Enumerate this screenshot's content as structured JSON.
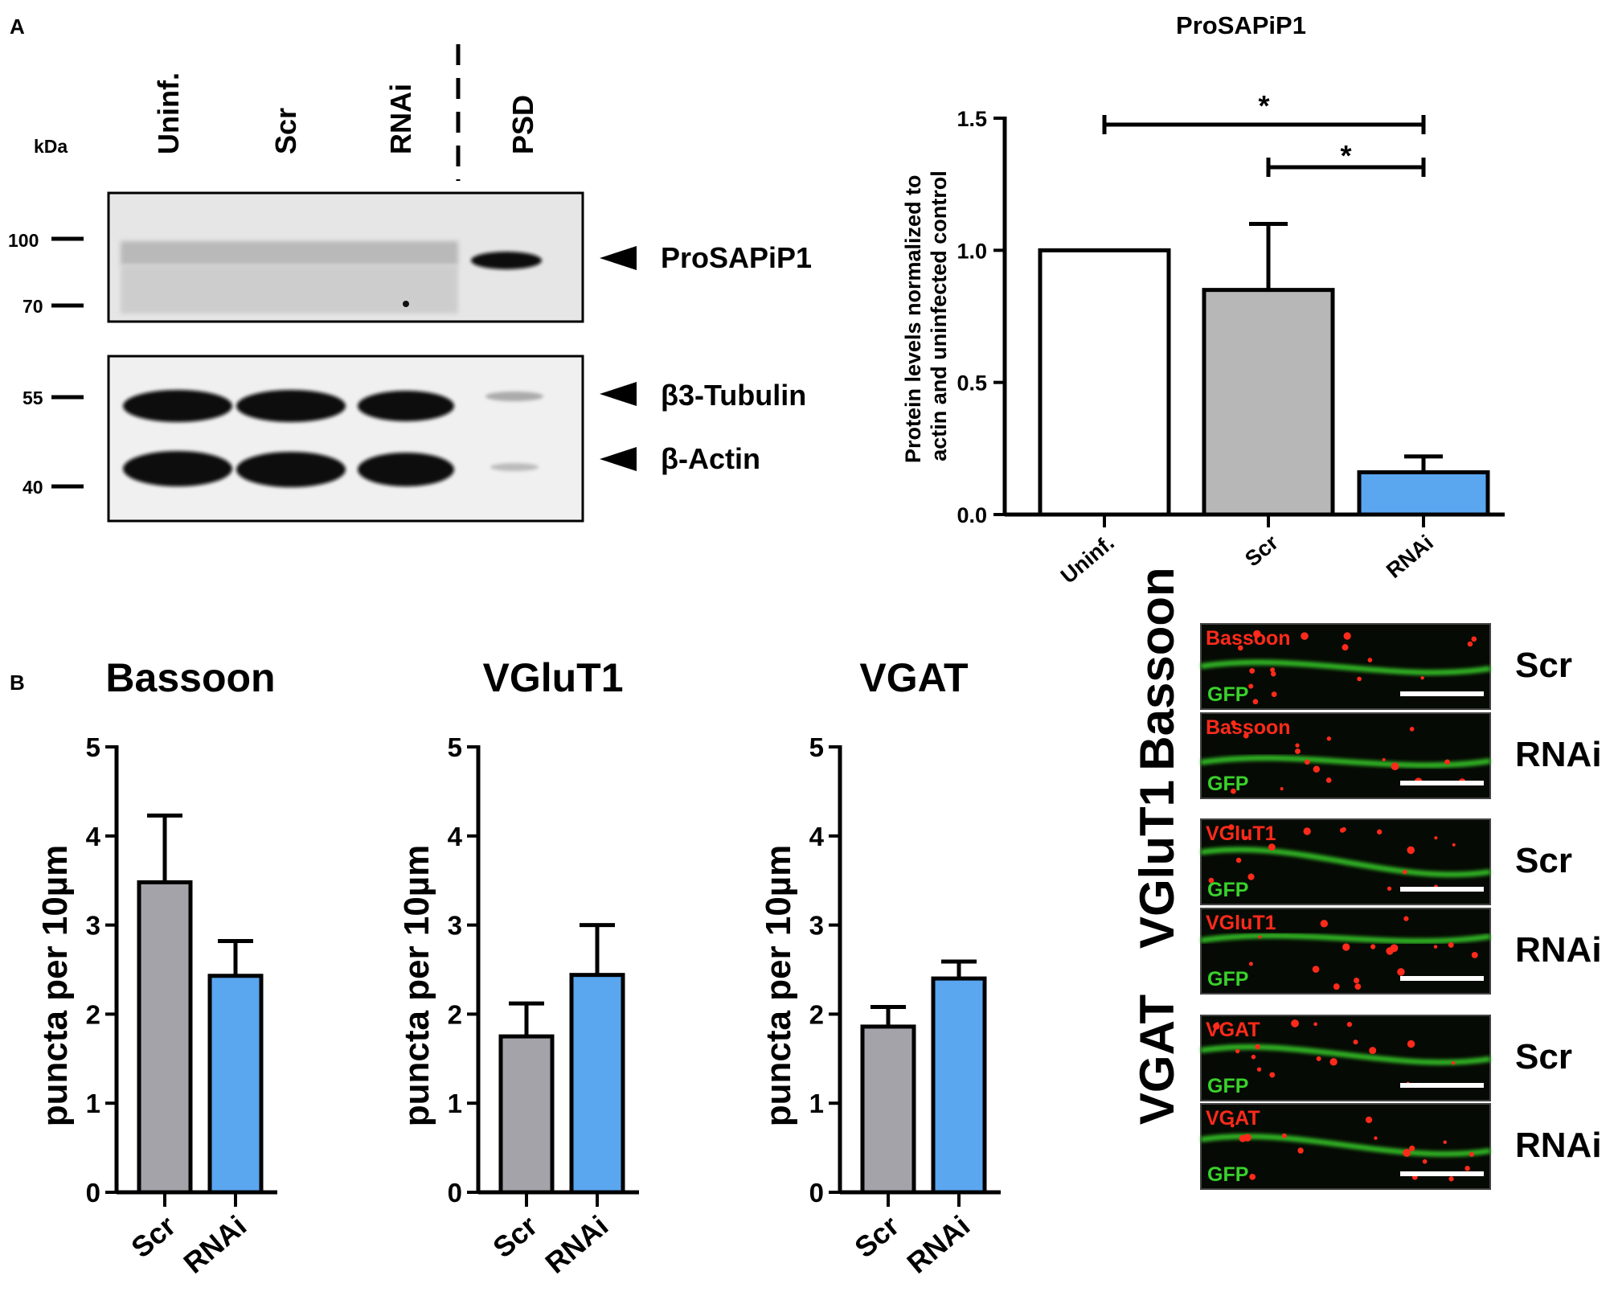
{
  "panel_a": {
    "label": "A",
    "blot": {
      "kda_label": "kDa",
      "lanes": [
        "Uninf.",
        "Scr",
        "RNAi",
        "PSD"
      ],
      "markers": [
        "100",
        "70",
        "55",
        "40"
      ],
      "bands": [
        "ProSAPiP1",
        "β3-Tubulin",
        "β-Actin"
      ]
    }
  },
  "panel_b": {
    "label": "B",
    "micrographs": {
      "rows": [
        {
          "group": "Bassoon",
          "red_label": "Bassoon",
          "green_label": "GFP",
          "condition": "Scr"
        },
        {
          "group": "Bassoon",
          "red_label": "Bassoon",
          "green_label": "GFP",
          "condition": "RNAi"
        },
        {
          "group": "VGluT1",
          "red_label": "VGluT1",
          "green_label": "GFP",
          "condition": "Scr"
        },
        {
          "group": "VGluT1",
          "red_label": "VGluT1",
          "green_label": "GFP",
          "condition": "RNAi"
        },
        {
          "group": "VGAT",
          "red_label": "VGAT",
          "green_label": "GFP",
          "condition": "Scr"
        },
        {
          "group": "VGAT",
          "red_label": "VGAT",
          "green_label": "GFP",
          "condition": "RNAi"
        }
      ],
      "groups": [
        "Bassoon",
        "VGluT1",
        "VGAT"
      ]
    }
  },
  "colors": {
    "white_bar": "#ffffff",
    "gray_bar": "#b7b7b7",
    "gray_bar_b": "#a3a3a9",
    "blue_bar": "#5aa6ef",
    "micro_red": "#ff2a1a",
    "micro_green": "#39d12b"
  },
  "chart_data": [
    {
      "type": "bar",
      "title": "ProSAPiP1",
      "ylabel": "Protein levels normalized to actin and uninfected control",
      "categories": [
        "Uninf.",
        "Scr",
        "RNAi"
      ],
      "values": [
        1.0,
        0.85,
        0.16
      ],
      "errors": [
        0,
        0.25,
        0.06
      ],
      "ylim": [
        0,
        1.5
      ],
      "yticks": [
        "0.0",
        "0.5",
        "1.0",
        "1.5"
      ],
      "significance": [
        {
          "from": "Uninf.",
          "to": "RNAi",
          "label": "*"
        },
        {
          "from": "Scr",
          "to": "RNAi",
          "label": "*"
        }
      ]
    },
    {
      "type": "bar",
      "title": "Bassoon",
      "ylabel": "puncta per 10µm",
      "categories": [
        "Scr",
        "RNAi"
      ],
      "values": [
        3.48,
        2.43
      ],
      "errors": [
        0.75,
        0.39
      ],
      "ylim": [
        0,
        5
      ],
      "yticks": [
        "0",
        "1",
        "2",
        "3",
        "4",
        "5"
      ]
    },
    {
      "type": "bar",
      "title": "VGluT1",
      "ylabel": "puncta per 10µm",
      "categories": [
        "Scr",
        "RNAi"
      ],
      "values": [
        1.75,
        2.44
      ],
      "errors": [
        0.37,
        0.56
      ],
      "ylim": [
        0,
        5
      ],
      "yticks": [
        "0",
        "1",
        "2",
        "3",
        "4",
        "5"
      ]
    },
    {
      "type": "bar",
      "title": "VGAT",
      "ylabel": "puncta per 10µm",
      "categories": [
        "Scr",
        "RNAi"
      ],
      "values": [
        1.86,
        2.4
      ],
      "errors": [
        0.22,
        0.19
      ],
      "ylim": [
        0,
        5
      ],
      "yticks": [
        "0",
        "1",
        "2",
        "3",
        "4",
        "5"
      ]
    }
  ]
}
